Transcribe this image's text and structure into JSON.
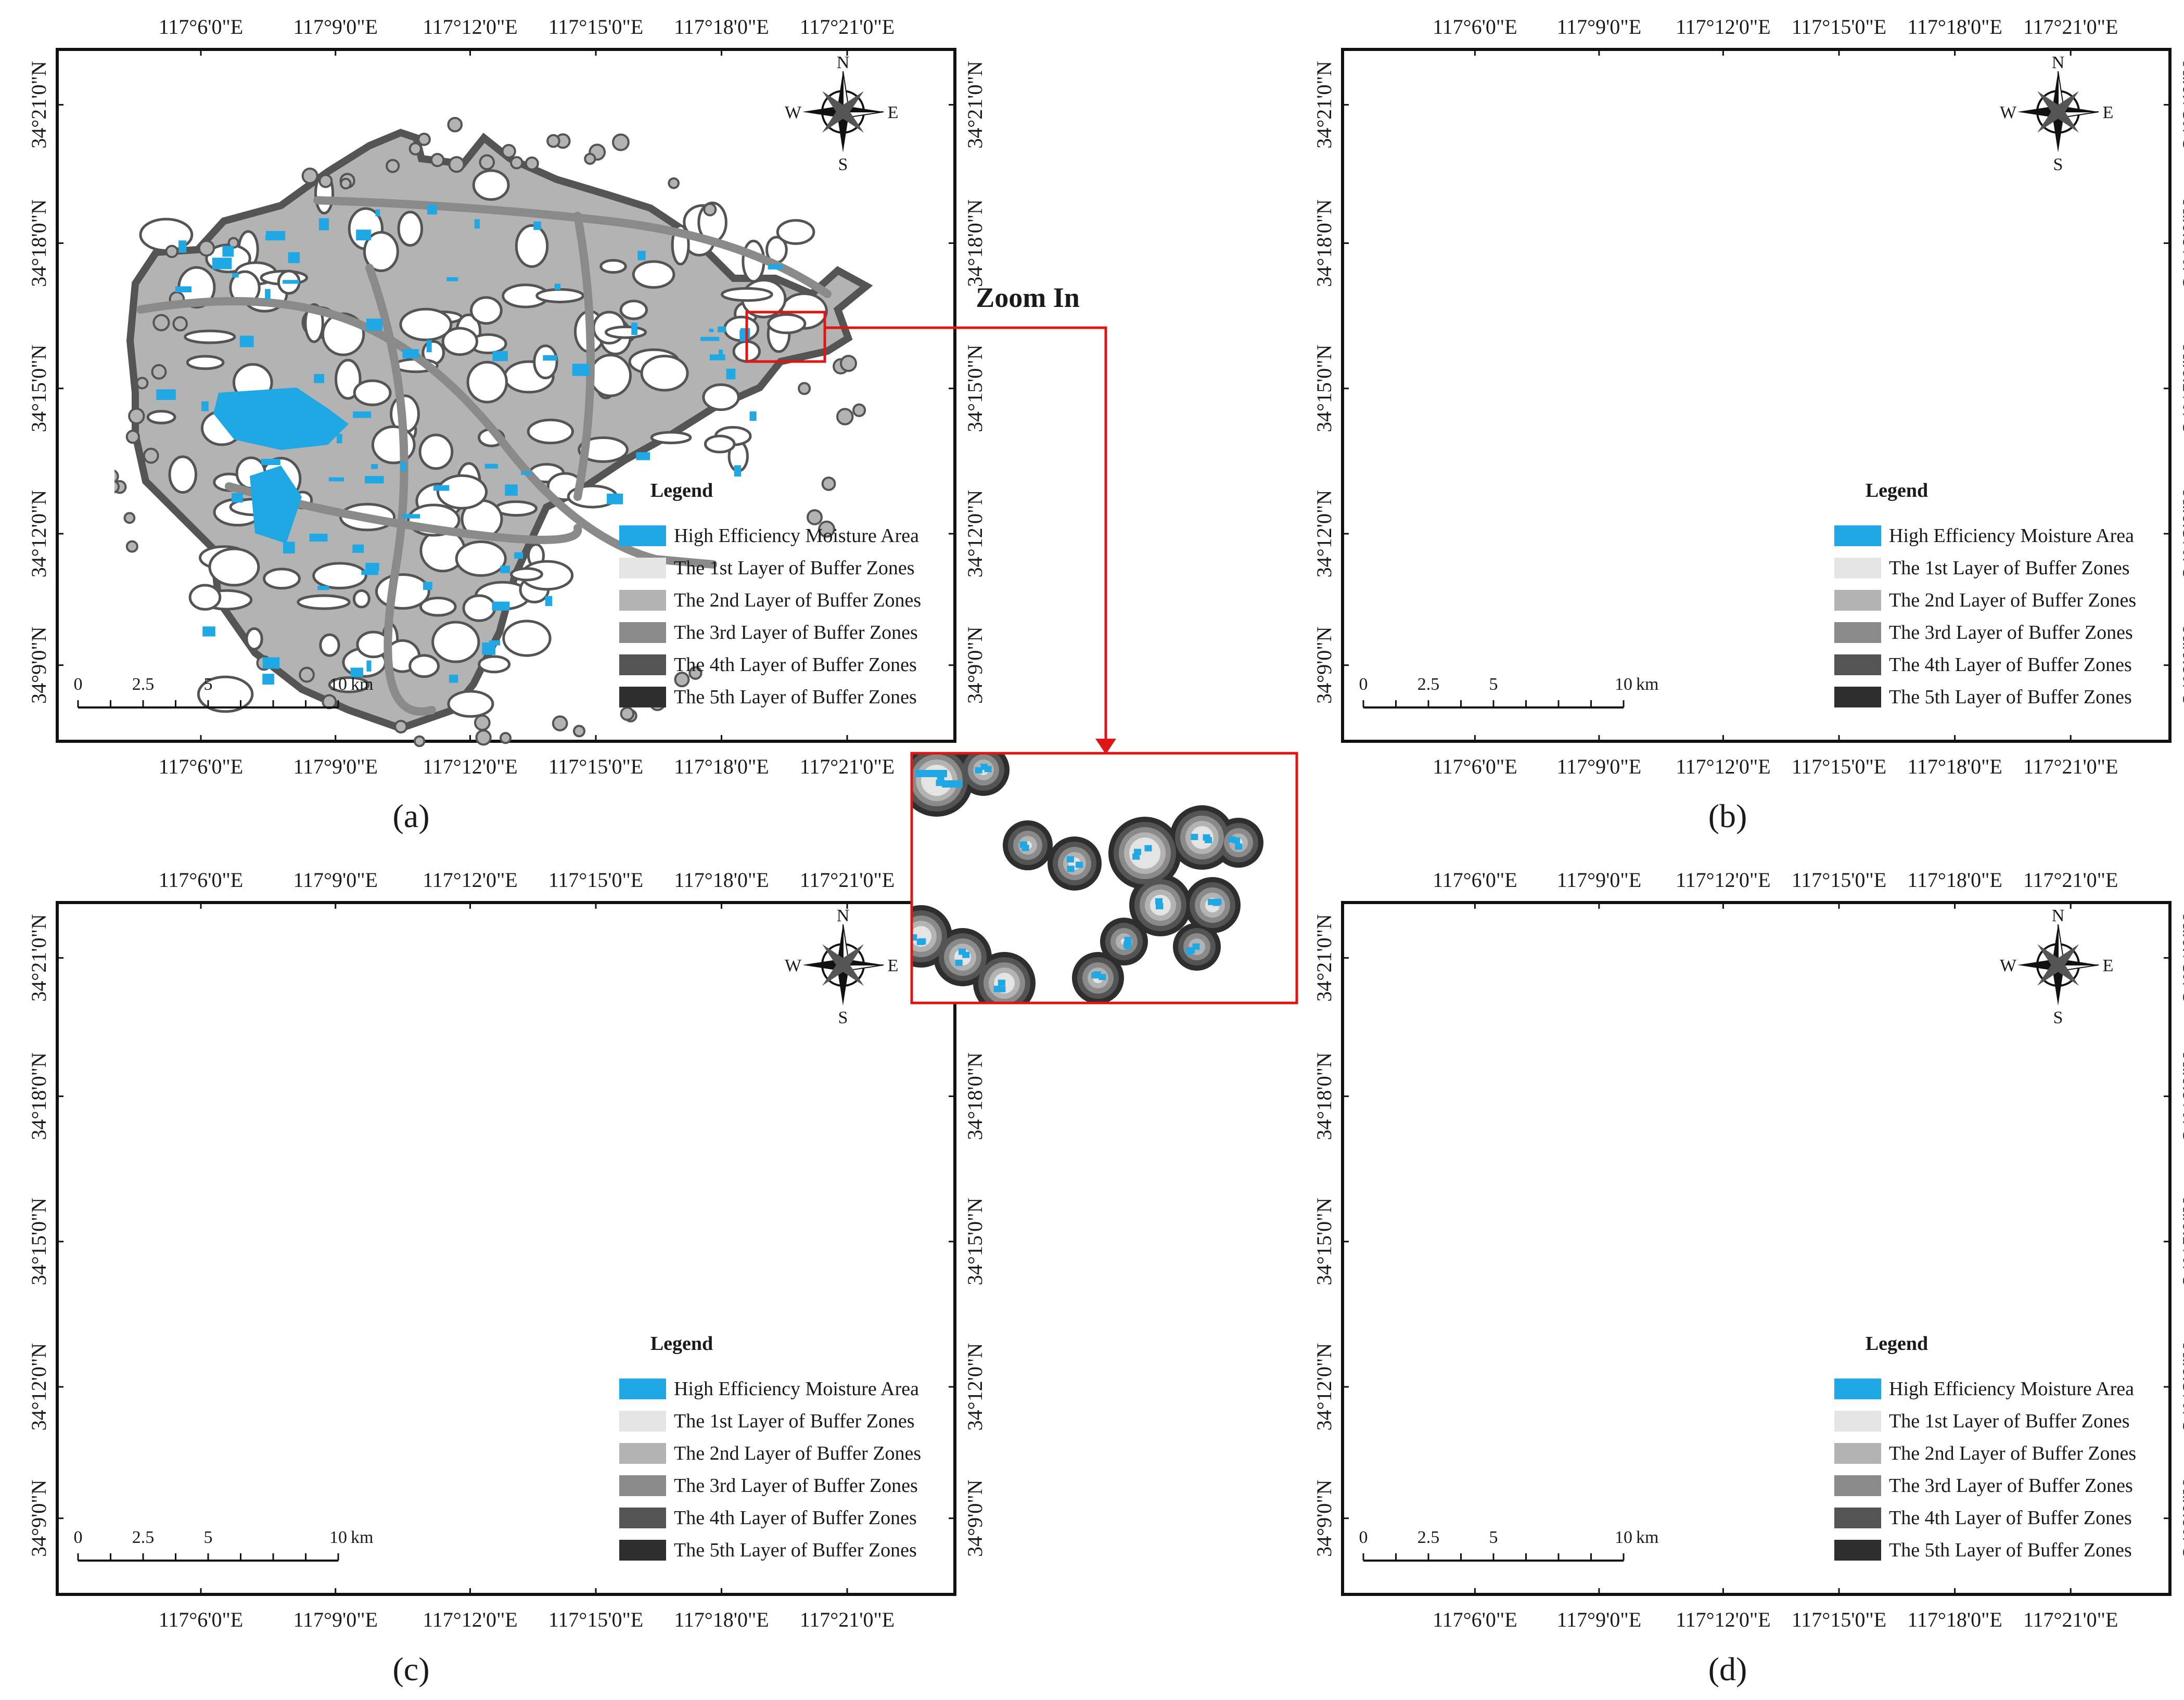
{
  "figure": {
    "zoom_label": "Zoom In",
    "colors": {
      "moisture": "#1fa8e3",
      "buffer1": "#e4e4e4",
      "buffer2": "#b3b3b3",
      "buffer3": "#8a8a8a",
      "buffer4": "#545454",
      "buffer5": "#2e2e2e",
      "frame": "#111111",
      "zoom": "#e01515"
    },
    "panels": [
      {
        "label": "(a)",
        "lon_ticks": [
          "117°6'0\"E",
          "117°9'0\"E",
          "117°12'0\"E",
          "117°15'0\"E",
          "117°18'0\"E",
          "117°21'0\"E"
        ],
        "lat_ticks": [
          "34°21'0\"N",
          "34°18'0\"N",
          "34°15'0\"N",
          "34°12'0\"N",
          "34°9'0\"N"
        ],
        "compass": {
          "n": "N",
          "s": "S",
          "e": "E",
          "w": "W"
        },
        "scale": {
          "labels": [
            "0",
            "2.5",
            "5",
            "10"
          ],
          "unit": "km"
        },
        "legend": {
          "title": "Legend",
          "items": [
            "High Efficiency Moisture Area",
            "The 1st Layer of Buffer Zones",
            "The 2nd Layer of Buffer Zones",
            "The 3rd Layer of Buffer Zones",
            "The 4th Layer of Buffer Zones",
            "The 5th Layer of Buffer Zones"
          ]
        }
      },
      {
        "label": "(b)",
        "lon_ticks": [
          "117°6'0\"E",
          "117°9'0\"E",
          "117°12'0\"E",
          "117°15'0\"E",
          "117°18'0\"E",
          "117°21'0\"E"
        ],
        "lat_ticks": [
          "34°21'0\"N",
          "34°18'0\"N",
          "34°15'0\"N",
          "34°12'0\"N",
          "34°9'0\"N"
        ],
        "compass": {
          "n": "N",
          "s": "S",
          "e": "E",
          "w": "W"
        },
        "scale": {
          "labels": [
            "0",
            "2.5",
            "5",
            "10"
          ],
          "unit": "km"
        },
        "legend": {
          "title": "Legend",
          "items": [
            "High Efficiency Moisture Area",
            "The 1st Layer of Buffer Zones",
            "The 2nd Layer of Buffer Zones",
            "The 3rd Layer of Buffer Zones",
            "The 4th Layer of Buffer Zones",
            "The 5th Layer of Buffer Zones"
          ]
        }
      },
      {
        "label": "(c)",
        "lon_ticks": [
          "117°6'0\"E",
          "117°9'0\"E",
          "117°12'0\"E",
          "117°15'0\"E",
          "117°18'0\"E",
          "117°21'0\"E"
        ],
        "lat_ticks": [
          "34°21'0\"N",
          "34°18'0\"N",
          "34°15'0\"N",
          "34°12'0\"N",
          "34°9'0\"N"
        ],
        "compass": {
          "n": "N",
          "s": "S",
          "e": "E",
          "w": "W"
        },
        "scale": {
          "labels": [
            "0",
            "2.5",
            "5",
            "10"
          ],
          "unit": "km"
        },
        "legend": {
          "title": "Legend",
          "items": [
            "High Efficiency Moisture Area",
            "The 1st Layer of Buffer Zones",
            "The 2nd Layer of Buffer Zones",
            "The 3rd Layer of Buffer Zones",
            "The 4th Layer of Buffer Zones",
            "The 5th Layer of Buffer Zones"
          ]
        }
      },
      {
        "label": "(d)",
        "lon_ticks": [
          "117°6'0\"E",
          "117°9'0\"E",
          "117°12'0\"E",
          "117°15'0\"E",
          "117°18'0\"E",
          "117°21'0\"E"
        ],
        "lat_ticks": [
          "34°21'0\"N",
          "34°18'0\"N",
          "34°15'0\"N",
          "34°12'0\"N",
          "34°9'0\"N"
        ],
        "compass": {
          "n": "N",
          "s": "S",
          "e": "E",
          "w": "W"
        },
        "scale": {
          "labels": [
            "0",
            "2.5",
            "5",
            "10"
          ],
          "unit": "km"
        },
        "legend": {
          "title": "Legend",
          "items": [
            "High Efficiency Moisture Area",
            "The 1st Layer of Buffer Zones",
            "The 2nd Layer of Buffer Zones",
            "The 3rd Layer of Buffer Zones",
            "The 4th Layer of Buffer Zones",
            "The 5th Layer of Buffer Zones"
          ]
        }
      }
    ]
  }
}
